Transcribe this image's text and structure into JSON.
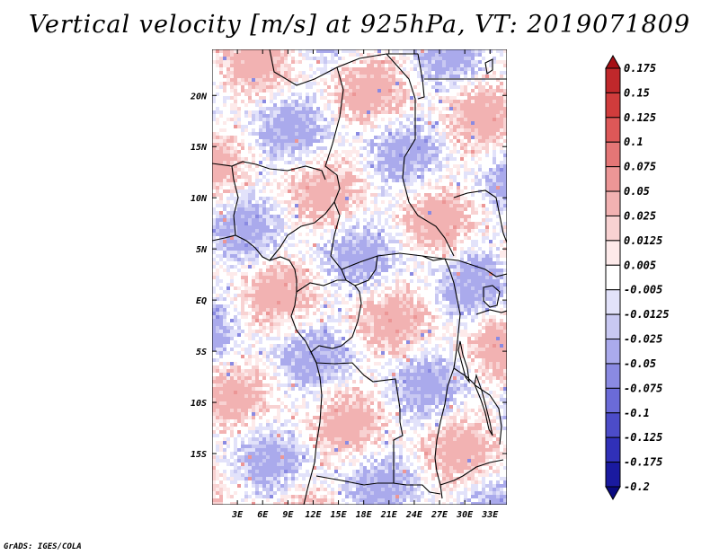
{
  "chart_data": {
    "type": "heatmap",
    "title": "Vertical velocity [m/s] at 925hPa, VT: 2019071809",
    "variable": "Vertical velocity",
    "units": "m/s",
    "level": "925hPa",
    "valid_time": "2019071809",
    "lon_range": [
      0,
      35
    ],
    "lat_range": [
      -20,
      24.5
    ],
    "x_ticks": [
      {
        "value": 3,
        "label": "3E"
      },
      {
        "value": 6,
        "label": "6E"
      },
      {
        "value": 9,
        "label": "9E"
      },
      {
        "value": 12,
        "label": "12E"
      },
      {
        "value": 15,
        "label": "15E"
      },
      {
        "value": 18,
        "label": "18E"
      },
      {
        "value": 21,
        "label": "21E"
      },
      {
        "value": 24,
        "label": "24E"
      },
      {
        "value": 27,
        "label": "27E"
      },
      {
        "value": 30,
        "label": "30E"
      },
      {
        "value": 33,
        "label": "33E"
      }
    ],
    "y_ticks": [
      {
        "value": 20,
        "label": "20N"
      },
      {
        "value": 15,
        "label": "15N"
      },
      {
        "value": 10,
        "label": "10N"
      },
      {
        "value": 5,
        "label": "5N"
      },
      {
        "value": 0,
        "label": "EQ"
      },
      {
        "value": -5,
        "label": "5S"
      },
      {
        "value": -10,
        "label": "10S"
      },
      {
        "value": -15,
        "label": "15S"
      }
    ],
    "colorbar": {
      "levels": [
        "0.175",
        "0.15",
        "0.125",
        "0.1",
        "0.075",
        "0.05",
        "0.025",
        "0.0125",
        "0.005",
        "-0.005",
        "-0.0125",
        "-0.025",
        "-0.05",
        "-0.075",
        "-0.1",
        "-0.125",
        "-0.175",
        "-0.2"
      ],
      "colors": [
        "#a50f15",
        "#c0282b",
        "#d03c3c",
        "#dd5858",
        "#e47676",
        "#ec9696",
        "#f2b2b2",
        "#f8d2d2",
        "#fdeaea",
        "#ffffff",
        "#e2e2fa",
        "#c8c8f2",
        "#aaaaec",
        "#8a8ae2",
        "#6b6bd8",
        "#4c4cc8",
        "#3030b8",
        "#1a1aa0",
        "#0a0a80"
      ]
    }
  },
  "footer": "GrADS: IGES/COLA"
}
